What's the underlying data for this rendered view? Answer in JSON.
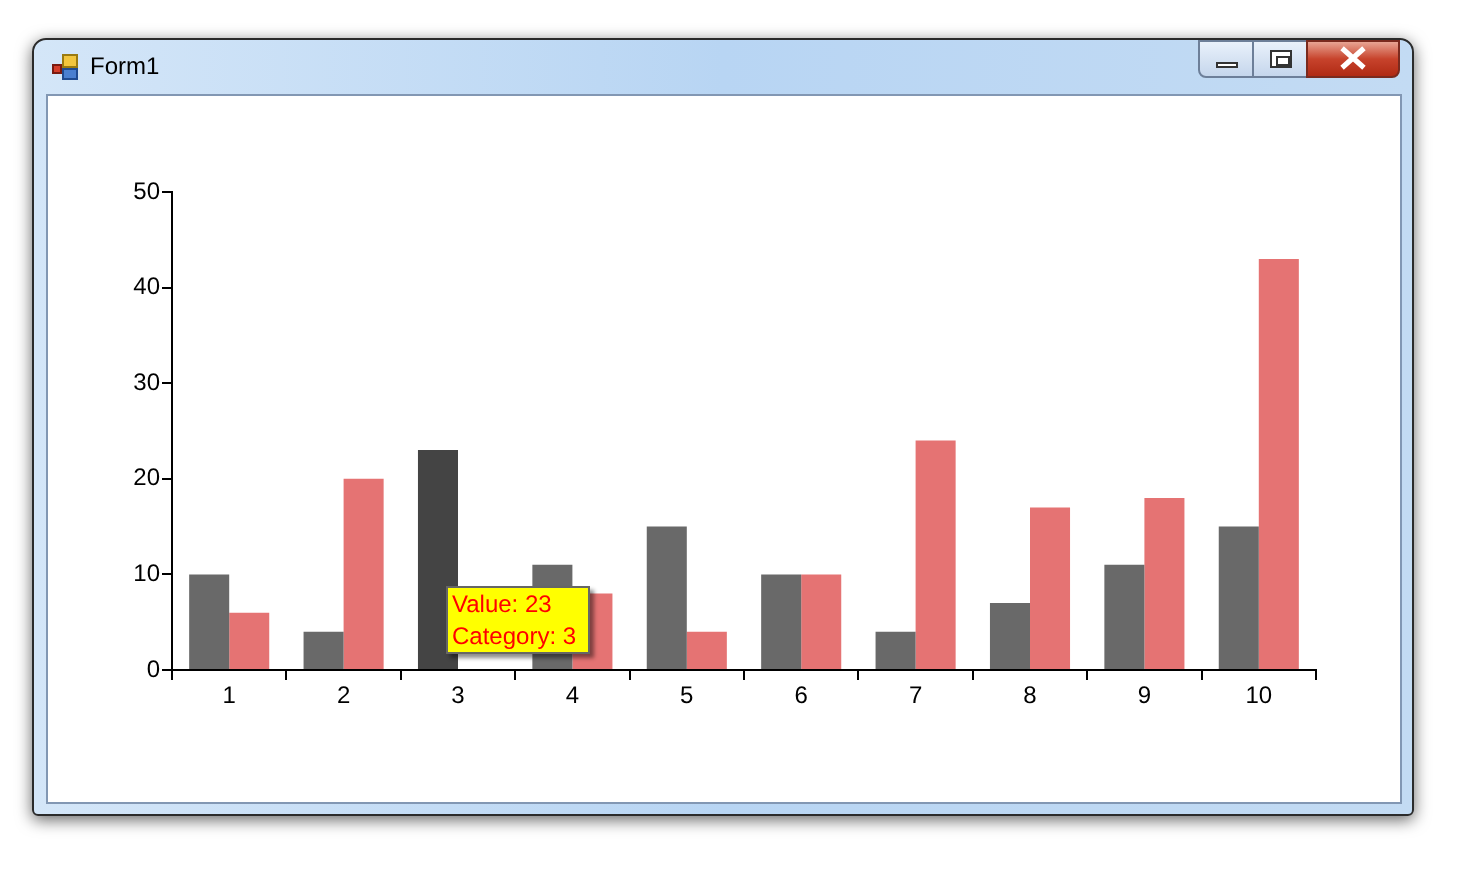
{
  "chart_data": {
    "type": "bar",
    "title": "Form1",
    "categories": [
      "1",
      "2",
      "3",
      "4",
      "5",
      "6",
      "7",
      "8",
      "9",
      "10"
    ],
    "series": [
      {
        "colors": [
          "#696969",
          "#696969",
          "#444444",
          "#696969",
          "#696969",
          "#696969",
          "#696969",
          "#696969",
          "#696969",
          "#696969"
        ],
        "values": [
          10,
          4,
          23,
          11,
          15,
          10,
          4,
          7,
          11,
          15
        ]
      },
      {
        "color": "#e57373",
        "values": [
          6,
          20,
          null,
          8,
          4,
          10,
          24,
          17,
          18,
          43
        ]
      }
    ],
    "ylim": [
      0,
      50
    ],
    "yticks": [
      0,
      10,
      20,
      30,
      40,
      50
    ],
    "annotations": [
      "Value: 23\nCategory: 3"
    ]
  }
}
